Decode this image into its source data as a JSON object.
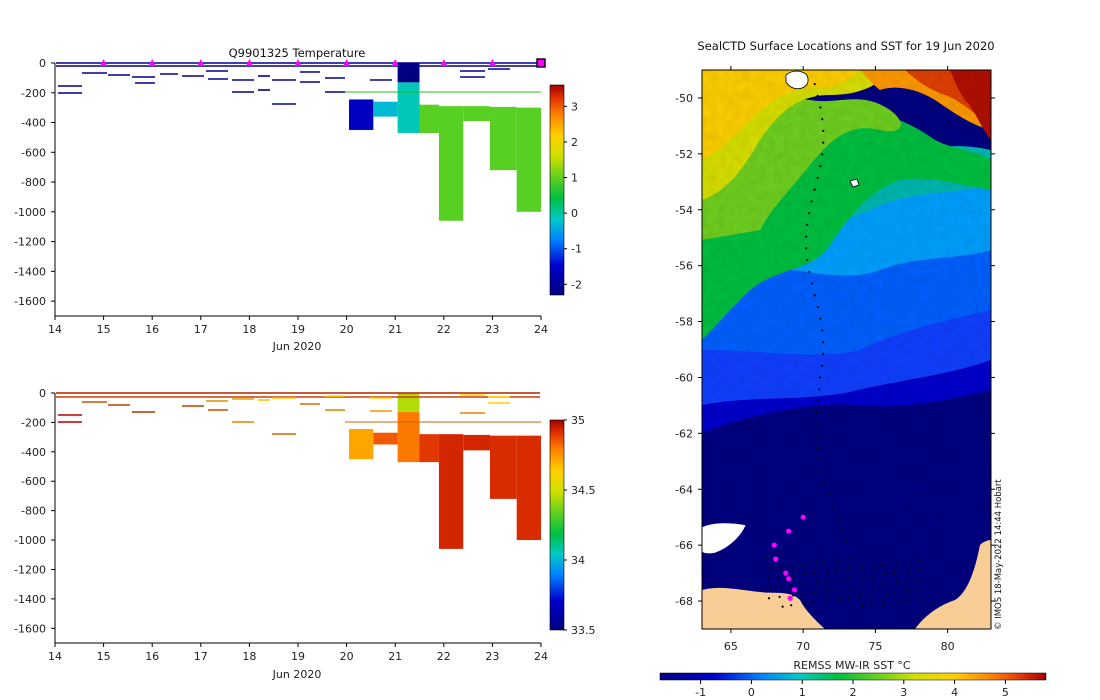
{
  "chart_data": [
    {
      "type": "heatmap",
      "panel": "temperature-section",
      "title": "Q9901325  Temperature",
      "xlabel": "Jun 2020",
      "x_ticks": [
        "14",
        "15",
        "16",
        "17",
        "18",
        "19",
        "20",
        "21",
        "22",
        "23",
        "24"
      ],
      "xlim": [
        14,
        24
      ],
      "ylim": [
        0,
        -1700
      ],
      "y_ticks": [
        "0",
        "-200",
        "-400",
        "-600",
        "-800",
        "-1000",
        "-1200",
        "-1400",
        "-1600"
      ],
      "colorbar": {
        "ticks": [
          "3",
          "2",
          "1",
          "0",
          "-1",
          "-2"
        ],
        "range": [
          -2.3,
          3.6
        ]
      },
      "profile_markers": [
        15,
        16,
        17,
        18,
        19,
        20,
        21,
        22,
        23
      ],
      "blocks": [
        {
          "x0": 20.05,
          "x1": 20.55,
          "d0": -245,
          "d1": -450,
          "v": -1.6
        },
        {
          "x0": 20.55,
          "x1": 21.05,
          "d0": -260,
          "d1": -360,
          "v": -0.3
        },
        {
          "x0": 21.05,
          "x1": 21.5,
          "d0": -130,
          "d1": -470,
          "v": -0.1
        },
        {
          "x0": 21.05,
          "x1": 21.5,
          "d0": 0,
          "d1": -130,
          "v": -2.3
        },
        {
          "x0": 21.5,
          "x1": 21.9,
          "d0": -280,
          "d1": -470,
          "v": 0.95
        },
        {
          "x0": 21.9,
          "x1": 22.4,
          "d0": -290,
          "d1": -1060,
          "v": 0.95
        },
        {
          "x0": 22.4,
          "x1": 22.95,
          "d0": -290,
          "d1": -390,
          "v": 0.95
        },
        {
          "x0": 22.95,
          "x1": 23.5,
          "d0": -295,
          "d1": -720,
          "v": 0.95
        },
        {
          "x0": 23.5,
          "x1": 24.05,
          "d0": -300,
          "d1": -1000,
          "v": 0.95
        }
      ]
    },
    {
      "type": "heatmap",
      "panel": "salinity-section",
      "xlabel": "Jun 2020",
      "x_ticks": [
        "14",
        "15",
        "16",
        "17",
        "18",
        "19",
        "20",
        "21",
        "22",
        "23",
        "24"
      ],
      "xlim": [
        14,
        24
      ],
      "ylim": [
        0,
        -1700
      ],
      "y_ticks": [
        "0",
        "-200",
        "-400",
        "-600",
        "-800",
        "-1000",
        "-1200",
        "-1400",
        "-1600"
      ],
      "colorbar": {
        "ticks": [
          "35",
          "34.5",
          "34",
          "33.5"
        ],
        "range": [
          33.5,
          35
        ]
      },
      "blocks": [
        {
          "x0": 20.05,
          "x1": 20.55,
          "d0": -245,
          "d1": -450,
          "v": 34.72
        },
        {
          "x0": 20.55,
          "x1": 21.05,
          "d0": -270,
          "d1": -350,
          "v": 34.85
        },
        {
          "x0": 21.05,
          "x1": 21.5,
          "d0": 0,
          "d1": -130,
          "v": 34.45
        },
        {
          "x0": 21.05,
          "x1": 21.5,
          "d0": -130,
          "d1": -470,
          "v": 34.8
        },
        {
          "x0": 21.5,
          "x1": 21.9,
          "d0": -280,
          "d1": -470,
          "v": 34.9
        },
        {
          "x0": 21.9,
          "x1": 22.4,
          "d0": -280,
          "d1": -1060,
          "v": 34.93
        },
        {
          "x0": 22.4,
          "x1": 22.95,
          "d0": -285,
          "d1": -390,
          "v": 34.93
        },
        {
          "x0": 22.95,
          "x1": 23.5,
          "d0": -290,
          "d1": -720,
          "v": 34.92
        },
        {
          "x0": 23.5,
          "x1": 24.05,
          "d0": -290,
          "d1": -1000,
          "v": 34.92
        }
      ]
    },
    {
      "type": "heatmap",
      "panel": "sst-map",
      "title": "SealCTD Surface Locations and SST for 19 Jun 2020",
      "xlim": [
        63,
        83
      ],
      "ylim": [
        -49,
        -69
      ],
      "x_ticks": [
        "65",
        "70",
        "75",
        "80"
      ],
      "y_ticks": [
        "-50",
        "-52",
        "-54",
        "-56",
        "-58",
        "-60",
        "-62",
        "-64",
        "-66",
        "-68"
      ],
      "colorbar": {
        "label": "REMSS MW-IR SST °C",
        "ticks": [
          "-1",
          "0",
          "1",
          "2",
          "3",
          "4",
          "5"
        ],
        "range": [
          -1.8,
          5.8
        ]
      },
      "side_note": "© IMOS 18-May-2022 14:44 Hobart",
      "highlight_positions": [
        [
          70.0,
          -65.0
        ],
        [
          69.0,
          -65.5
        ],
        [
          68.0,
          -66.0
        ],
        [
          68.1,
          -66.5
        ],
        [
          68.8,
          -67.0
        ],
        [
          69.0,
          -67.2
        ],
        [
          69.4,
          -67.6
        ],
        [
          69.1,
          -67.9
        ]
      ]
    }
  ],
  "colors": {
    "background": "#ffffff",
    "axis": "#000000",
    "marker": "#ff00ff",
    "land": "#f9cd96"
  }
}
